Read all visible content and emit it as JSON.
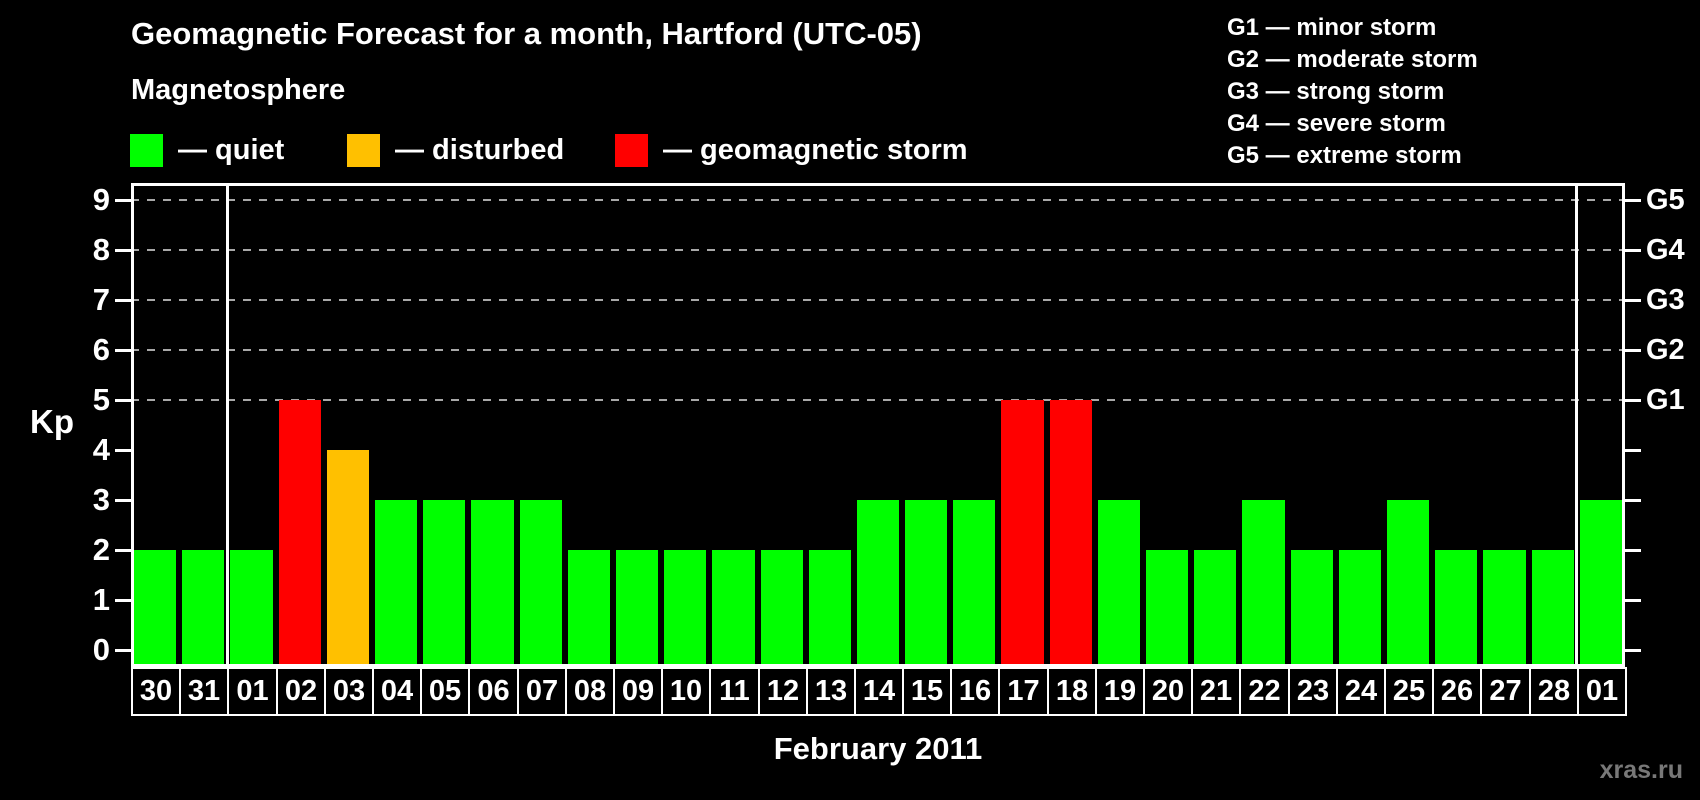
{
  "title": "Geomagnetic Forecast for a month, Hartford (UTC-05)",
  "legend": {
    "heading": "Magnetosphere",
    "items": [
      {
        "name": "quiet",
        "label": "— quiet",
        "color": "#00ff00"
      },
      {
        "name": "disturbed",
        "label": "— disturbed",
        "color": "#ffc000"
      },
      {
        "name": "storm",
        "label": "— geomagnetic storm",
        "color": "#ff0000"
      }
    ]
  },
  "storm_scale": [
    "G1 — minor storm",
    "G2 — moderate storm",
    "G3 — strong storm",
    "G4 — severe storm",
    "G5 — extreme storm"
  ],
  "watermark": "xras.ru",
  "chart_data": {
    "type": "bar",
    "title": "Geomagnetic Forecast for a month, Hartford (UTC-05)",
    "xlabel": "February 2011",
    "ylabel": "Kp",
    "categories": [
      "30",
      "31",
      "01",
      "02",
      "03",
      "04",
      "05",
      "06",
      "07",
      "08",
      "09",
      "10",
      "11",
      "12",
      "13",
      "14",
      "15",
      "16",
      "17",
      "18",
      "19",
      "20",
      "21",
      "22",
      "23",
      "24",
      "25",
      "26",
      "27",
      "28",
      "01"
    ],
    "values": [
      2,
      2,
      2,
      5,
      4,
      3,
      3,
      3,
      3,
      2,
      2,
      2,
      2,
      2,
      2,
      3,
      3,
      3,
      5,
      5,
      3,
      2,
      2,
      3,
      2,
      2,
      3,
      2,
      2,
      2,
      3
    ],
    "ylim": [
      -0.35,
      9.35
    ],
    "yticks": [
      0,
      1,
      2,
      3,
      4,
      5,
      6,
      7,
      8,
      9
    ],
    "gridline_levels": [
      5,
      6,
      7,
      8,
      9
    ],
    "right_axis": {
      "levels": [
        5,
        6,
        7,
        8,
        9
      ],
      "labels": [
        "G1",
        "G2",
        "G3",
        "G4",
        "G5"
      ]
    },
    "month_separators_after_index": [
      1,
      29
    ],
    "palette": {
      "quiet": "#00ff00",
      "disturbed": "#ffc000",
      "storm": "#ff0000"
    },
    "color_rules": {
      "disturbed_at": 4,
      "storm_at": 5
    },
    "legend_position": "top-left",
    "grid": "dashed horizontal at G levels only"
  }
}
